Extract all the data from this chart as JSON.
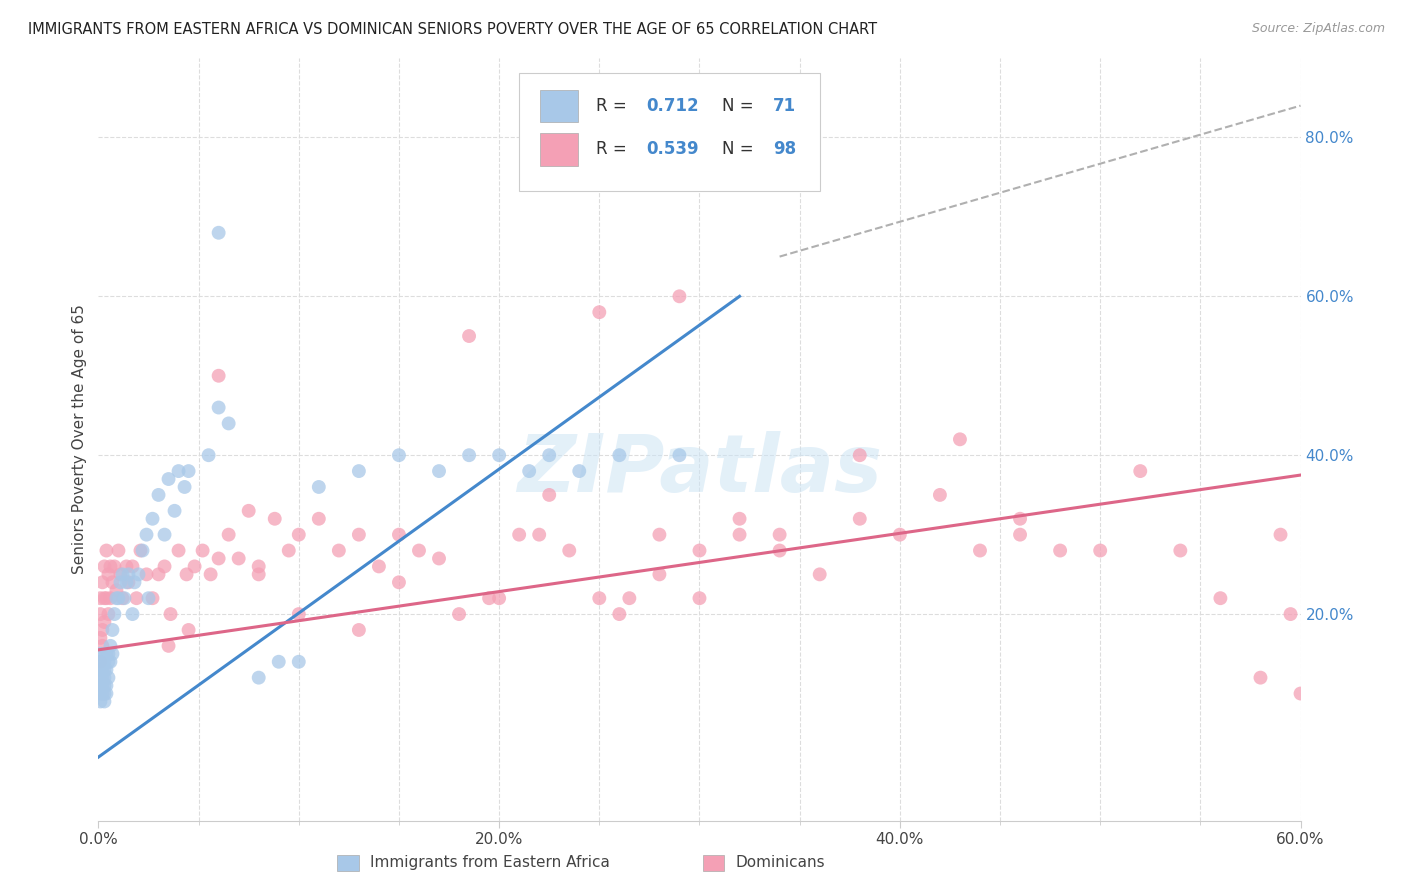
{
  "title": "IMMIGRANTS FROM EASTERN AFRICA VS DOMINICAN SENIORS POVERTY OVER THE AGE OF 65 CORRELATION CHART",
  "source": "Source: ZipAtlas.com",
  "ylabel": "Seniors Poverty Over the Age of 65",
  "xlim": [
    0.0,
    0.6
  ],
  "ylim": [
    -0.06,
    0.9
  ],
  "xtick_labels": [
    "0.0%",
    "",
    "",
    "",
    "20.0%",
    "",
    "",
    "",
    "40.0%",
    "",
    "",
    "",
    "60.0%"
  ],
  "xtick_vals": [
    0.0,
    0.05,
    0.1,
    0.15,
    0.2,
    0.25,
    0.3,
    0.35,
    0.4,
    0.45,
    0.5,
    0.55,
    0.6
  ],
  "ytick_right_labels": [
    "20.0%",
    "40.0%",
    "60.0%",
    "80.0%"
  ],
  "ytick_right_vals": [
    0.2,
    0.4,
    0.6,
    0.8
  ],
  "blue_color": "#a8c8e8",
  "pink_color": "#f4a0b5",
  "blue_line_color": "#4488cc",
  "pink_line_color": "#dd6688",
  "diagonal_color": "#b0b0b0",
  "blue_label": "Immigrants from Eastern Africa",
  "pink_label": "Dominicans",
  "blue_R": "0.712",
  "blue_N": "71",
  "pink_R": "0.539",
  "pink_N": "98",
  "watermark": "ZIPatlas",
  "blue_line_x": [
    0.0,
    0.32
  ],
  "blue_line_y": [
    0.02,
    0.6
  ],
  "pink_line_x": [
    0.0,
    0.6
  ],
  "pink_line_y": [
    0.155,
    0.375
  ],
  "diag_line_x": [
    0.34,
    0.6
  ],
  "diag_line_y": [
    0.65,
    0.84
  ],
  "blue_scatter_x": [
    0.001,
    0.001,
    0.001,
    0.001,
    0.001,
    0.001,
    0.001,
    0.001,
    0.002,
    0.002,
    0.002,
    0.002,
    0.002,
    0.002,
    0.003,
    0.003,
    0.003,
    0.003,
    0.003,
    0.003,
    0.004,
    0.004,
    0.004,
    0.004,
    0.005,
    0.005,
    0.005,
    0.006,
    0.006,
    0.007,
    0.007,
    0.008,
    0.009,
    0.01,
    0.011,
    0.012,
    0.013,
    0.014,
    0.015,
    0.017,
    0.018,
    0.02,
    0.022,
    0.024,
    0.025,
    0.027,
    0.03,
    0.033,
    0.035,
    0.038,
    0.04,
    0.043,
    0.045,
    0.055,
    0.06,
    0.065,
    0.08,
    0.09,
    0.1,
    0.06,
    0.11,
    0.13,
    0.15,
    0.17,
    0.185,
    0.2,
    0.215,
    0.225,
    0.24,
    0.26,
    0.29
  ],
  "blue_scatter_y": [
    0.14,
    0.13,
    0.15,
    0.12,
    0.11,
    0.1,
    0.09,
    0.13,
    0.14,
    0.13,
    0.12,
    0.11,
    0.15,
    0.1,
    0.14,
    0.13,
    0.11,
    0.1,
    0.12,
    0.09,
    0.15,
    0.13,
    0.11,
    0.1,
    0.15,
    0.14,
    0.12,
    0.16,
    0.14,
    0.18,
    0.15,
    0.2,
    0.22,
    0.22,
    0.24,
    0.25,
    0.22,
    0.24,
    0.25,
    0.2,
    0.24,
    0.25,
    0.28,
    0.3,
    0.22,
    0.32,
    0.35,
    0.3,
    0.37,
    0.33,
    0.38,
    0.36,
    0.38,
    0.4,
    0.46,
    0.44,
    0.12,
    0.14,
    0.14,
    0.68,
    0.36,
    0.38,
    0.4,
    0.38,
    0.4,
    0.4,
    0.38,
    0.4,
    0.38,
    0.4,
    0.4
  ],
  "pink_scatter_x": [
    0.001,
    0.001,
    0.001,
    0.001,
    0.002,
    0.002,
    0.002,
    0.003,
    0.003,
    0.003,
    0.004,
    0.004,
    0.005,
    0.005,
    0.006,
    0.006,
    0.007,
    0.008,
    0.009,
    0.01,
    0.011,
    0.012,
    0.014,
    0.015,
    0.017,
    0.019,
    0.021,
    0.024,
    0.027,
    0.03,
    0.033,
    0.036,
    0.04,
    0.044,
    0.048,
    0.052,
    0.056,
    0.06,
    0.065,
    0.07,
    0.075,
    0.08,
    0.088,
    0.095,
    0.1,
    0.11,
    0.12,
    0.13,
    0.14,
    0.15,
    0.16,
    0.17,
    0.185,
    0.195,
    0.21,
    0.225,
    0.235,
    0.25,
    0.265,
    0.28,
    0.3,
    0.32,
    0.34,
    0.36,
    0.38,
    0.4,
    0.42,
    0.44,
    0.46,
    0.48,
    0.5,
    0.52,
    0.54,
    0.56,
    0.58,
    0.59,
    0.595,
    0.6,
    0.38,
    0.26,
    0.43,
    0.46,
    0.28,
    0.3,
    0.32,
    0.34,
    0.15,
    0.18,
    0.2,
    0.22,
    0.045,
    0.1,
    0.13,
    0.06,
    0.08,
    0.035,
    0.25,
    0.29
  ],
  "pink_scatter_y": [
    0.14,
    0.2,
    0.17,
    0.22,
    0.18,
    0.24,
    0.16,
    0.22,
    0.19,
    0.26,
    0.22,
    0.28,
    0.25,
    0.2,
    0.22,
    0.26,
    0.24,
    0.26,
    0.23,
    0.28,
    0.25,
    0.22,
    0.26,
    0.24,
    0.26,
    0.22,
    0.28,
    0.25,
    0.22,
    0.25,
    0.26,
    0.2,
    0.28,
    0.25,
    0.26,
    0.28,
    0.25,
    0.27,
    0.3,
    0.27,
    0.33,
    0.26,
    0.32,
    0.28,
    0.3,
    0.32,
    0.28,
    0.3,
    0.26,
    0.3,
    0.28,
    0.27,
    0.55,
    0.22,
    0.3,
    0.35,
    0.28,
    0.58,
    0.22,
    0.3,
    0.28,
    0.3,
    0.28,
    0.25,
    0.32,
    0.3,
    0.35,
    0.28,
    0.3,
    0.28,
    0.28,
    0.38,
    0.28,
    0.22,
    0.12,
    0.3,
    0.2,
    0.1,
    0.4,
    0.2,
    0.42,
    0.32,
    0.25,
    0.22,
    0.32,
    0.3,
    0.24,
    0.2,
    0.22,
    0.3,
    0.18,
    0.2,
    0.18,
    0.5,
    0.25,
    0.16,
    0.22,
    0.6
  ]
}
